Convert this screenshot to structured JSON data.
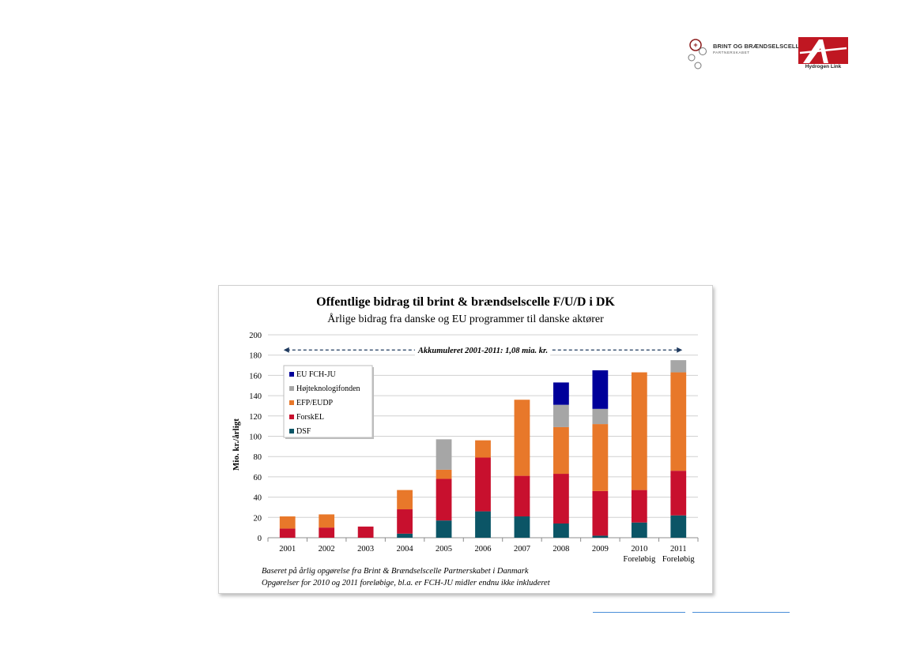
{
  "logos": {
    "brint": {
      "title": "BRINT OG BRÆNDSELSCELLER",
      "subtitle": "PARTNERSKABET"
    },
    "hydrogen_link": {
      "text": "Hydrogen Link"
    }
  },
  "colors": {
    "DSF": "#0b5566",
    "ForskEL": "#c8102e",
    "EFP/EUDP": "#e8782a",
    "Højteknologifonden": "#a6a6a6",
    "EU FCH-JU": "#00009a",
    "footer_line": "#4a8ed8"
  },
  "chart_data": {
    "type": "bar",
    "stacked": true,
    "title": "Offentlige bidrag til brint & brændselscelle F/U/D i DK",
    "subtitle": "Årlige bidrag fra danske og EU programmer til danske aktører",
    "ylabel": "Mio. kr./årligt",
    "xlabel": "",
    "ylim": [
      0,
      200
    ],
    "yticks": [
      "0",
      "20",
      "40",
      "60",
      "80",
      "100",
      "120",
      "140",
      "160",
      "180",
      "200"
    ],
    "grid": true,
    "categories": [
      [
        "2001"
      ],
      [
        "2002"
      ],
      [
        "2003"
      ],
      [
        "2004"
      ],
      [
        "2005"
      ],
      [
        "2006"
      ],
      [
        "2007"
      ],
      [
        "2008"
      ],
      [
        "2009"
      ],
      [
        "2010",
        "Foreløbig"
      ],
      [
        "2011",
        "Foreløbig"
      ]
    ],
    "series": [
      {
        "name": "DSF",
        "values": [
          0,
          0,
          0,
          4,
          17,
          26,
          21,
          14,
          2,
          15,
          22
        ]
      },
      {
        "name": "ForskEL",
        "values": [
          9,
          10,
          11,
          24,
          41,
          53,
          40,
          49,
          44,
          32,
          44
        ]
      },
      {
        "name": "EFP/EUDP",
        "values": [
          12,
          13,
          0,
          19,
          9,
          17,
          75,
          46,
          66,
          116,
          97
        ]
      },
      {
        "name": "Højteknologifonden",
        "values": [
          0,
          0,
          0,
          0,
          30,
          0,
          0,
          22,
          15,
          0,
          12
        ]
      },
      {
        "name": "EU FCH-JU",
        "values": [
          0,
          0,
          0,
          0,
          0,
          0,
          0,
          22,
          38,
          0,
          0
        ]
      }
    ],
    "legend_order": [
      "EU FCH-JU",
      "Højteknologifonden",
      "EFP/EUDP",
      "ForskEL",
      "DSF"
    ],
    "legend_position": "upper-left",
    "annotation": "Akkumuleret 2001-2011: 1,08 mia. kr.",
    "annotation_value": 185,
    "footnotes": [
      "Baseret på årlig opgørelse fra Brint & Brændselscelle Partnerskabet i Danmark",
      "Opgørelser for 2010 og 2011 foreløbige, bl.a. er FCH-JU midler endnu ikke inkluderet"
    ]
  }
}
